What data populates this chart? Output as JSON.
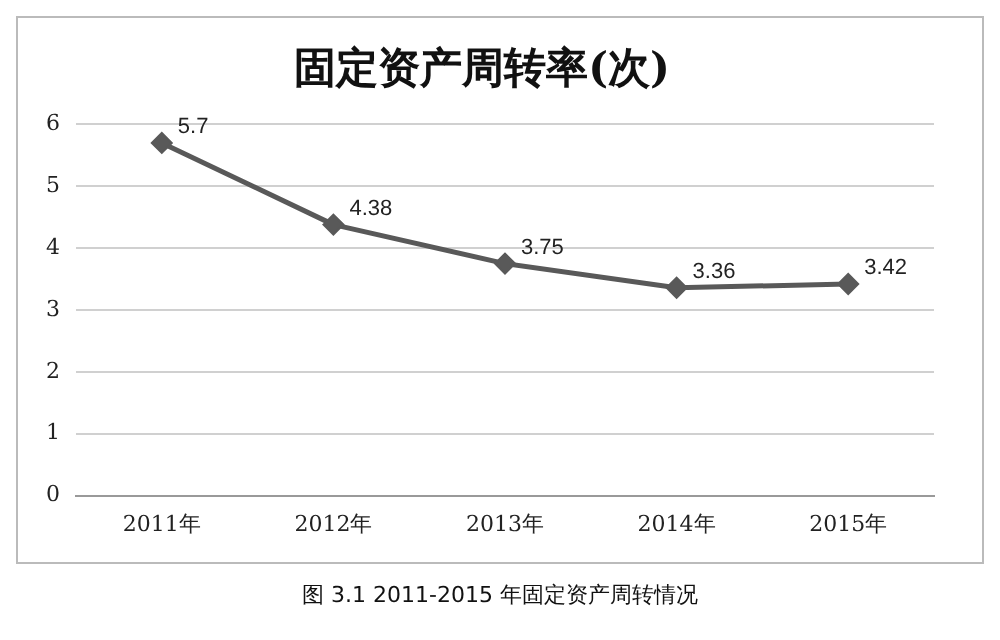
{
  "chart_data": {
    "type": "line",
    "title": "固定资产周转率(次)",
    "categories": [
      "2011年",
      "2012年",
      "2013年",
      "2014年",
      "2015年"
    ],
    "series": [
      {
        "color": "#595959",
        "values": [
          5.7,
          4.38,
          3.75,
          3.36,
          3.42
        ]
      }
    ],
    "ylim": [
      0,
      6
    ],
    "yticks": [
      0,
      1,
      2,
      3,
      4,
      5,
      6
    ],
    "grid": "y",
    "marker": "diamond",
    "line_style": "solid",
    "data_labels": true,
    "legend": false,
    "annotations": [
      "图 3.1 2011-2015 年固定资产周转情况"
    ]
  }
}
